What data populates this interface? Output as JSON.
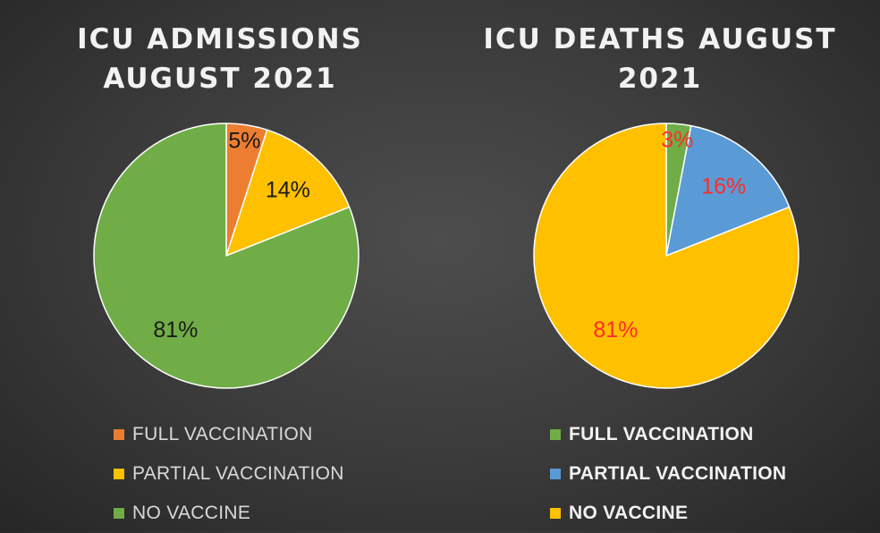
{
  "chart_data": [
    {
      "type": "pie",
      "title_lines": [
        "ICU ADMISSIONS",
        "AUGUST 2021"
      ],
      "categories": [
        "FULL VACCINATION",
        "PARTIAL VACCINATION",
        "NO VACCINE"
      ],
      "values": [
        5,
        14,
        81
      ],
      "data_labels": [
        "5%",
        "14%",
        "81%"
      ],
      "colors": [
        "#ed7d31",
        "#ffc000",
        "#70ad47"
      ],
      "label_color": "#1a1a1a",
      "legend_position": "bottom"
    },
    {
      "type": "pie",
      "title_lines": [
        "ICU DEATHS AUGUST",
        "2021"
      ],
      "categories": [
        "FULL VACCINATION",
        "PARTIAL VACCINATION",
        "NO VACCINE"
      ],
      "values": [
        3,
        16,
        81
      ],
      "data_labels": [
        "3%",
        "16%",
        "81%"
      ],
      "colors": [
        "#70ad47",
        "#5b9bd5",
        "#ffc000"
      ],
      "label_color": "#ff2b2b",
      "legend_position": "bottom"
    }
  ]
}
